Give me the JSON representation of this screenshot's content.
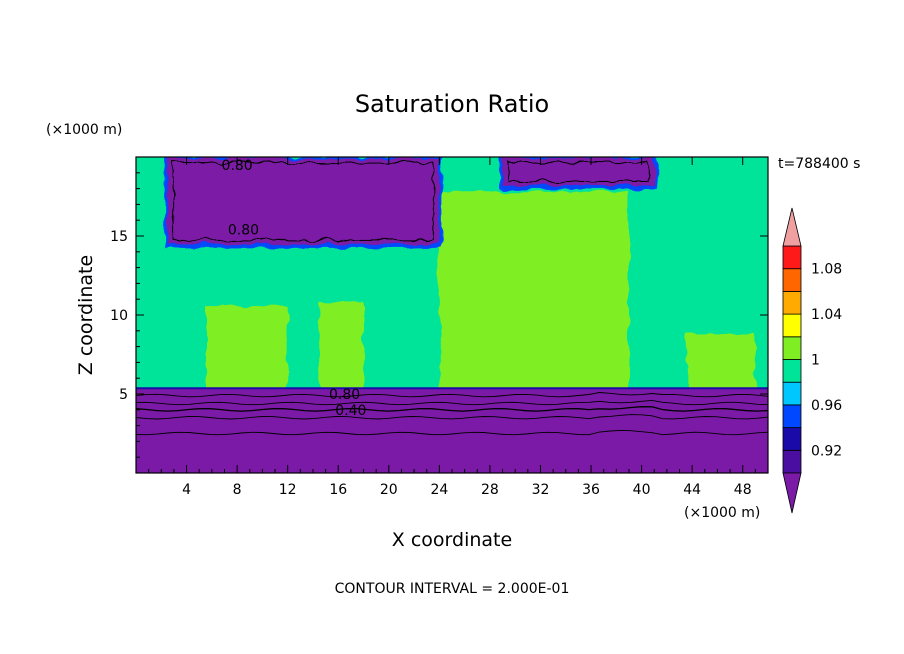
{
  "chart_data": {
    "type": "heatmap",
    "title": "Saturation Ratio",
    "xlabel": "X coordinate",
    "ylabel": "Z coordinate",
    "x_unit": "(×1000 m)",
    "y_unit": "(×1000 m)",
    "time_label": "t=788400 s",
    "footer": "CONTOUR INTERVAL = 2.000E-01",
    "xlim": [
      0,
      50
    ],
    "ylim": [
      0,
      20
    ],
    "x_ticks": [
      4,
      8,
      12,
      16,
      20,
      24,
      28,
      32,
      36,
      40,
      44,
      48
    ],
    "y_ticks": [
      5,
      10,
      15
    ],
    "grid": false,
    "colorbar": {
      "levels": [
        0.9,
        0.92,
        0.94,
        0.96,
        0.98,
        1.0,
        1.02,
        1.04,
        1.06,
        1.08,
        1.1
      ],
      "labels": [
        "0.92",
        "0.96",
        "1",
        "1.04",
        "1.08"
      ],
      "label_values": [
        0.92,
        0.96,
        1.0,
        1.04,
        1.08
      ],
      "colors": [
        "#4a0fa0",
        "#1a0aa8",
        "#0048ff",
        "#00c8ff",
        "#00e49a",
        "#7fee22",
        "#ffff00",
        "#ffaa00",
        "#ff6600",
        "#ff1a1a"
      ],
      "under_color": "#7b1aa6",
      "over_color": "#f0a0a0",
      "legend_placement": "right"
    },
    "contour_labels": [
      {
        "text": "0.80",
        "x": 8.0,
        "z": 19.5
      },
      {
        "text": "0.80",
        "x": 8.5,
        "z": 15.4
      },
      {
        "text": "0.80",
        "x": 16.5,
        "z": 5.0
      },
      {
        "text": "0.40",
        "x": 17.0,
        "z": 4.0
      }
    ],
    "regions": {
      "lower_dry_layer": {
        "value": 0.8,
        "z_top": 5.3
      },
      "background": {
        "value": 0.98
      },
      "saturated_columns": [
        {
          "value": 1.0,
          "x": [
            5.5,
            12.0
          ],
          "z": [
            5.3,
            10.5
          ]
        },
        {
          "value": 1.0,
          "x": [
            14.5,
            18.0
          ],
          "z": [
            5.3,
            10.8
          ]
        },
        {
          "value": 1.0,
          "x": [
            24.0,
            39.0
          ],
          "z": [
            5.3,
            17.8
          ]
        },
        {
          "value": 1.0,
          "x": [
            43.5,
            49.0
          ],
          "z": [
            5.3,
            8.8
          ]
        }
      ],
      "upper_dry_patches": [
        {
          "value": 0.8,
          "x": [
            2.5,
            24.0
          ],
          "z": [
            14.5,
            19.9
          ]
        },
        {
          "value": 0.8,
          "x": [
            29.0,
            41.0
          ],
          "z": [
            18.2,
            19.9
          ]
        }
      ]
    }
  }
}
